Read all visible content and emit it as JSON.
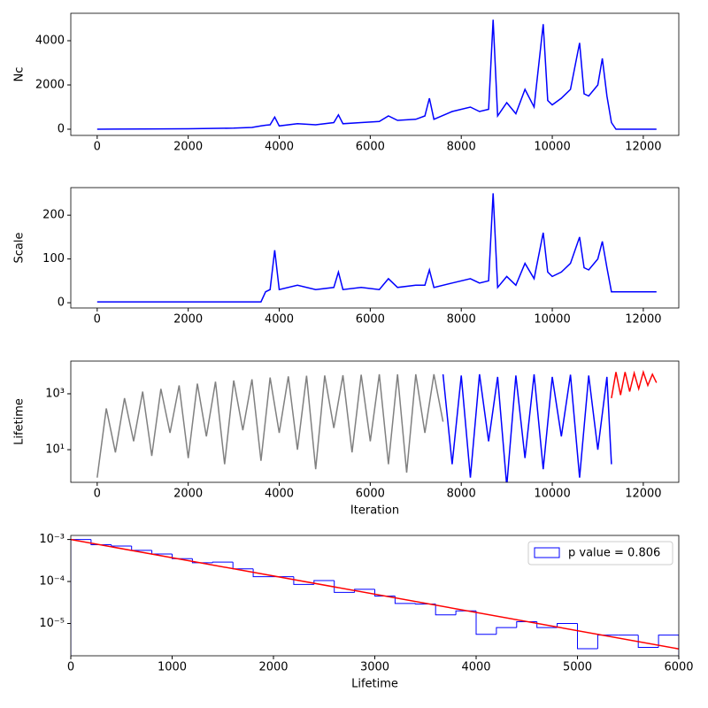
{
  "chart_data": [
    {
      "type": "line",
      "ylabel": "Nc",
      "x": [
        0,
        1000,
        2000,
        3000,
        3400,
        3600,
        3700,
        3800,
        3900,
        4000,
        4400,
        4800,
        5200,
        5300,
        5400,
        5800,
        6200,
        6400,
        6600,
        7000,
        7200,
        7300,
        7400,
        7800,
        8200,
        8400,
        8600,
        8700,
        8800,
        9000,
        9200,
        9400,
        9600,
        9800,
        9900,
        10000,
        10200,
        10400,
        10600,
        10700,
        10800,
        11000,
        11100,
        11200,
        11300,
        11400,
        12290
      ],
      "series": [
        {
          "color": "#0000ff",
          "values": [
            0,
            10,
            20,
            50,
            80,
            150,
            180,
            200,
            550,
            150,
            250,
            200,
            300,
            650,
            250,
            300,
            350,
            600,
            400,
            450,
            600,
            1400,
            450,
            800,
            1000,
            800,
            900,
            4950,
            600,
            1200,
            700,
            1800,
            1000,
            4750,
            1300,
            1100,
            1400,
            1800,
            3900,
            1600,
            1500,
            2000,
            3200,
            1500,
            300,
            0,
            0
          ]
        }
      ],
      "xlim": [
        -580,
        12780
      ],
      "ylim": [
        -280,
        5240
      ],
      "xticks": [
        0,
        2000,
        4000,
        6000,
        8000,
        10000,
        12000
      ],
      "yticks": [
        0,
        2000,
        4000
      ]
    },
    {
      "type": "line",
      "ylabel": "Scale",
      "x": [
        0,
        1000,
        2000,
        3000,
        3400,
        3600,
        3700,
        3800,
        3900,
        4000,
        4400,
        4800,
        5200,
        5300,
        5400,
        5800,
        6200,
        6400,
        6600,
        7000,
        7200,
        7300,
        7400,
        7800,
        8200,
        8400,
        8600,
        8700,
        8800,
        9000,
        9200,
        9400,
        9600,
        9800,
        9900,
        10000,
        10200,
        10400,
        10600,
        10700,
        10800,
        11000,
        11100,
        11200,
        11300,
        11400,
        12290
      ],
      "series": [
        {
          "color": "#0000ff",
          "values": [
            2,
            2,
            2,
            2,
            2,
            2,
            25,
            30,
            120,
            30,
            40,
            30,
            35,
            70,
            30,
            35,
            30,
            55,
            35,
            40,
            40,
            75,
            35,
            45,
            55,
            45,
            50,
            250,
            35,
            60,
            40,
            90,
            55,
            160,
            70,
            60,
            70,
            90,
            150,
            80,
            75,
            100,
            140,
            80,
            25,
            25,
            25
          ]
        }
      ],
      "xlim": [
        -580,
        12780
      ],
      "ylim": [
        -12,
        263
      ],
      "xticks": [
        0,
        2000,
        4000,
        6000,
        8000,
        10000,
        12000
      ],
      "yticks": [
        0,
        100,
        200
      ]
    },
    {
      "type": "line",
      "ylabel": "Lifetime",
      "xlabel": "Iteration",
      "log_y": true,
      "series": [
        {
          "color": "#808080",
          "x": [
            0,
            200,
            400,
            600,
            800,
            1000,
            1200,
            1400,
            1600,
            1800,
            2000,
            2200,
            2400,
            2600,
            2800,
            3000,
            3200,
            3400,
            3600,
            3800,
            4000,
            4200,
            4400,
            4600,
            4800,
            5000,
            5200,
            5400,
            5600,
            5800,
            6000,
            6200,
            6400,
            6600,
            6800,
            7000,
            7200,
            7400,
            7600
          ],
          "values": [
            1,
            300,
            8,
            700,
            20,
            1200,
            6,
            1500,
            40,
            2000,
            5,
            2300,
            30,
            2700,
            3,
            3000,
            50,
            3300,
            4,
            3800,
            40,
            4200,
            10,
            4400,
            2,
            4500,
            60,
            4600,
            8,
            4800,
            20,
            5000,
            3,
            5000,
            1.5,
            5000,
            40,
            5000,
            100
          ]
        },
        {
          "color": "#0000ff",
          "x": [
            7600,
            7800,
            8000,
            8200,
            8400,
            8600,
            8800,
            9000,
            9200,
            9400,
            9600,
            9800,
            10000,
            10200,
            10400,
            10600,
            10800,
            11000,
            11200,
            11300
          ],
          "values": [
            5000,
            3,
            4500,
            1,
            5000,
            20,
            4000,
            0.5,
            4500,
            5,
            5000,
            2,
            4000,
            30,
            4800,
            1,
            4500,
            10,
            4000,
            3
          ]
        },
        {
          "color": "#ff0000",
          "x": [
            11300,
            11400,
            11500,
            11600,
            11700,
            11800,
            11900,
            12000,
            12100,
            12200,
            12290
          ],
          "values": [
            700,
            6000,
            900,
            6000,
            1200,
            5500,
            1500,
            6000,
            2000,
            5000,
            2500
          ]
        }
      ],
      "xlim": [
        -580,
        12780
      ],
      "ylim": [
        0.68,
        14800
      ],
      "xticks": [
        0,
        2000,
        4000,
        6000,
        8000,
        10000,
        12000
      ],
      "yticks": [
        {
          "value": 10,
          "label": "10¹"
        },
        {
          "value": 1000,
          "label": "10³"
        }
      ]
    },
    {
      "type": "histogram",
      "xlabel": "Lifetime",
      "log_y": true,
      "legend": "upper right",
      "bins": [
        0,
        200,
        400,
        600,
        800,
        1000,
        1200,
        1400,
        1600,
        1800,
        2000,
        2200,
        2400,
        2600,
        2800,
        3000,
        3200,
        3400,
        3600,
        3800,
        4000,
        4200,
        4400,
        4600,
        4800,
        5000,
        5200,
        5400,
        5600,
        5800,
        6000
      ],
      "series": [
        {
          "name": "p value = 0.806",
          "color": "#0000ff",
          "values": [
            0.001,
            0.00075,
            0.0007,
            0.00055,
            0.00045,
            0.00035,
            0.00028,
            0.00029,
            0.0002,
            0.00013,
            0.00013,
            8.5e-05,
            0.000105,
            5.5e-05,
            6.5e-05,
            4.5e-05,
            3e-05,
            2.9e-05,
            1.6e-05,
            2e-05,
            5.5e-06,
            8e-06,
            1.1e-05,
            8e-06,
            1e-05,
            2.5e-06,
            5.3e-06,
            5.3e-06,
            2.7e-06,
            5.3e-06
          ]
        }
      ],
      "fit": {
        "color": "#ff0000",
        "x": [
          0,
          6000
        ],
        "values": [
          0.001,
          2.48e-06
        ]
      },
      "xlim": [
        0,
        6000
      ],
      "ylim": [
        1.7e-06,
        0.00125
      ],
      "xticks": [
        0,
        1000,
        2000,
        3000,
        4000,
        5000,
        6000
      ],
      "yticks": [
        {
          "value": 0.001,
          "label": "10⁻³"
        },
        {
          "value": 0.0001,
          "label": "10⁻⁴"
        },
        {
          "value": 1e-05,
          "label": "10⁻⁵"
        }
      ]
    }
  ]
}
